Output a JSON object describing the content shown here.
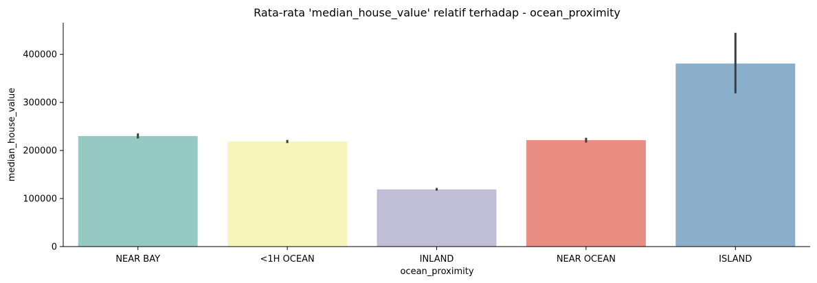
{
  "chart_data": {
    "type": "bar",
    "title": "Rata-rata 'median_house_value' relatif terhadap - ocean_proximity",
    "xlabel": "ocean_proximity",
    "ylabel": "median_house_value",
    "categories": [
      "NEAR BAY",
      "<1H OCEAN",
      "INLAND",
      "NEAR OCEAN",
      "ISLAND"
    ],
    "values": [
      230000,
      219000,
      119000,
      221500,
      381000
    ],
    "error_low": [
      225000,
      215500,
      116500,
      216500,
      319000
    ],
    "error_high": [
      235500,
      222000,
      122000,
      226500,
      445000
    ],
    "colors": [
      "#96c9c1",
      "#f6f6bb",
      "#c0bed5",
      "#e98d82",
      "#8baecb"
    ],
    "ylim": [
      0,
      466000
    ],
    "yticks": [
      0,
      100000,
      200000,
      300000,
      400000
    ],
    "ytick_labels": [
      "0",
      "100000",
      "200000",
      "300000",
      "400000"
    ],
    "grid": false,
    "legend": "none"
  }
}
